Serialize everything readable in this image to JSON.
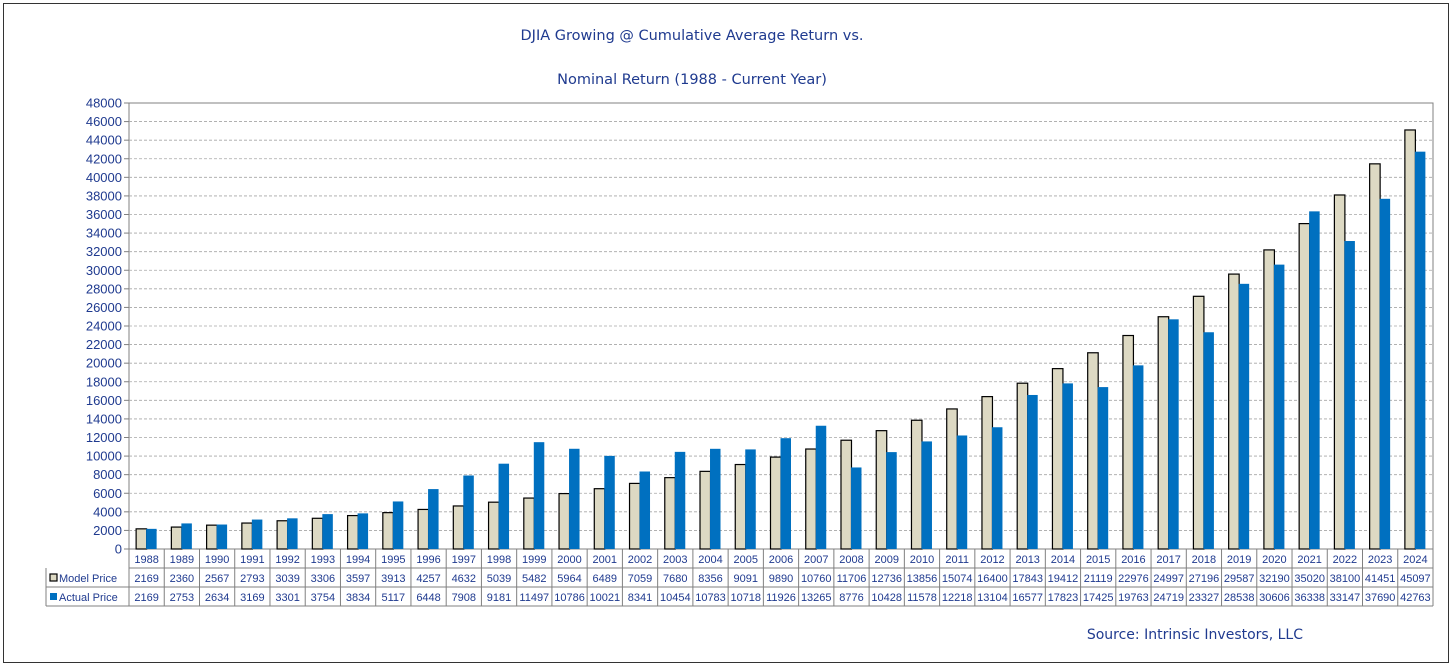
{
  "chart_data": {
    "type": "bar",
    "title": "DJIA Growing @  Cumulative Average Return vs.",
    "subtitle": "Nominal Return  (1988 - Current Year)",
    "source": "Source: Intrinsic Investors, LLC",
    "ylim": [
      0,
      48000
    ],
    "ytick_step": 2000,
    "grid": true,
    "legend_placement": "data-table",
    "categories": [
      "1988",
      "1989",
      "1990",
      "1991",
      "1992",
      "1993",
      "1994",
      "1995",
      "1996",
      "1997",
      "1998",
      "1999",
      "2000",
      "2001",
      "2002",
      "2003",
      "2004",
      "2005",
      "2006",
      "2007",
      "2008",
      "2009",
      "2010",
      "2011",
      "2012",
      "2013",
      "2014",
      "2015",
      "2016",
      "2017",
      "2018",
      "2019",
      "2020",
      "2021",
      "2022",
      "2023",
      "2024"
    ],
    "series": [
      {
        "name": "Model Price",
        "color": "#ddd9c3",
        "values": [
          2169,
          2360,
          2567,
          2793,
          3039,
          3306,
          3597,
          3913,
          4257,
          4632,
          5039,
          5482,
          5964,
          6489,
          7059,
          7680,
          8356,
          9091,
          9890,
          10760,
          11706,
          12736,
          13856,
          15074,
          16400,
          17843,
          19412,
          21119,
          22976,
          24997,
          27196,
          29587,
          32190,
          35020,
          38100,
          41451,
          45097
        ]
      },
      {
        "name": "Actual Price",
        "color": "#0070c0",
        "values": [
          2169,
          2753,
          2634,
          3169,
          3301,
          3754,
          3834,
          5117,
          6448,
          7908,
          9181,
          11497,
          10786,
          10021,
          8341,
          10454,
          10783,
          10718,
          11926,
          13265,
          8776,
          10428,
          11578,
          12218,
          13104,
          16577,
          17823,
          17425,
          19763,
          24719,
          23327,
          28538,
          30606,
          36338,
          33147,
          37690,
          42763
        ]
      }
    ]
  }
}
